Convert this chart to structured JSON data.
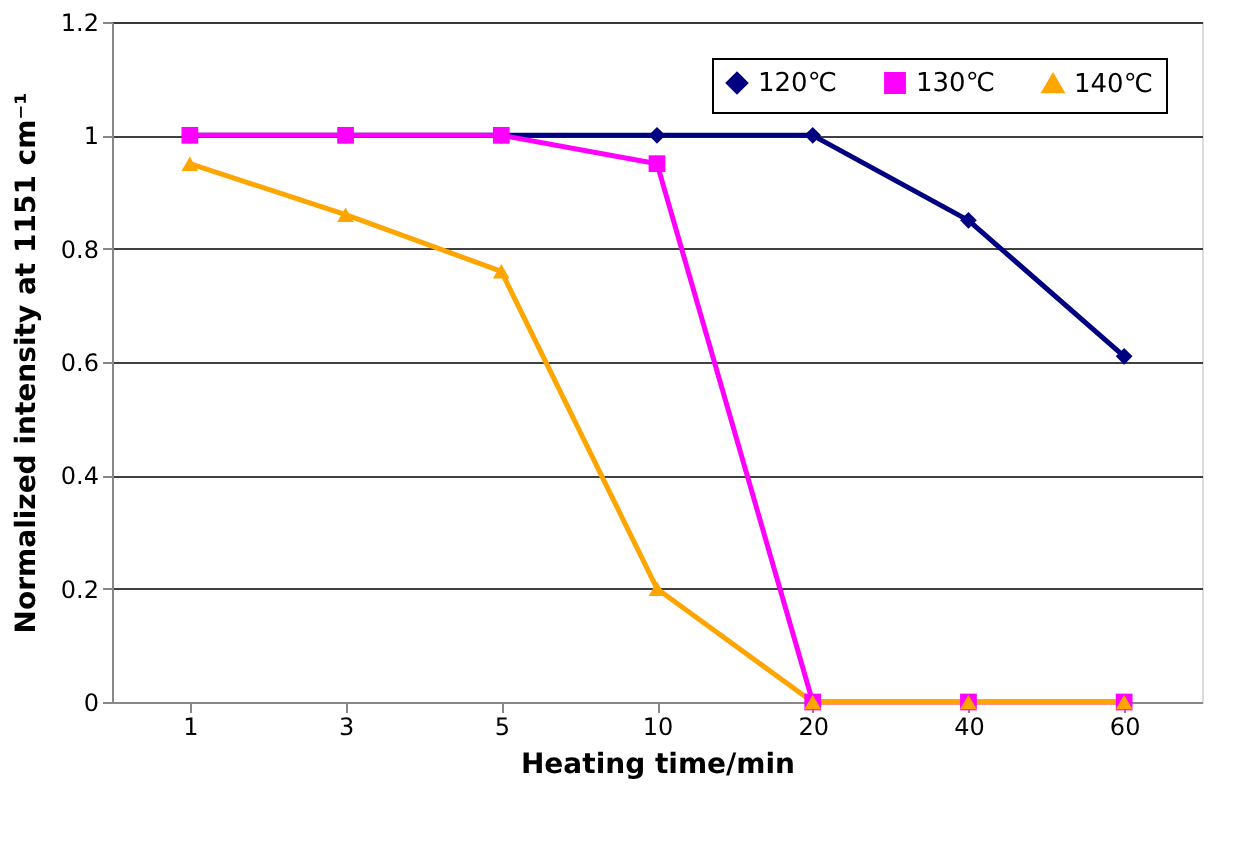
{
  "chart_data": {
    "type": "line",
    "xlabel": "Heating time/min",
    "ylabel": "Normalized intensity at 1151 cm⁻¹",
    "categories": [
      "1",
      "3",
      "5",
      "10",
      "20",
      "40",
      "60"
    ],
    "series": [
      {
        "name": "120℃",
        "color": "#000080",
        "marker": "diamond",
        "values": [
          1,
          1,
          1,
          1,
          1,
          0.85,
          0.61
        ]
      },
      {
        "name": "130℃",
        "color": "#ff00ff",
        "marker": "square",
        "values": [
          1,
          1,
          1,
          0.95,
          0,
          0,
          0
        ]
      },
      {
        "name": "140℃",
        "color": "#ffa500",
        "marker": "triangle",
        "values": [
          0.95,
          0.86,
          0.76,
          0.2,
          0,
          0,
          0
        ]
      }
    ],
    "ylim": [
      0,
      1.2
    ],
    "yticks": [
      0,
      0.2,
      0.4,
      0.6,
      0.8,
      1,
      1.2
    ],
    "grid": "y",
    "legend": "top right",
    "line_style": "solid"
  }
}
